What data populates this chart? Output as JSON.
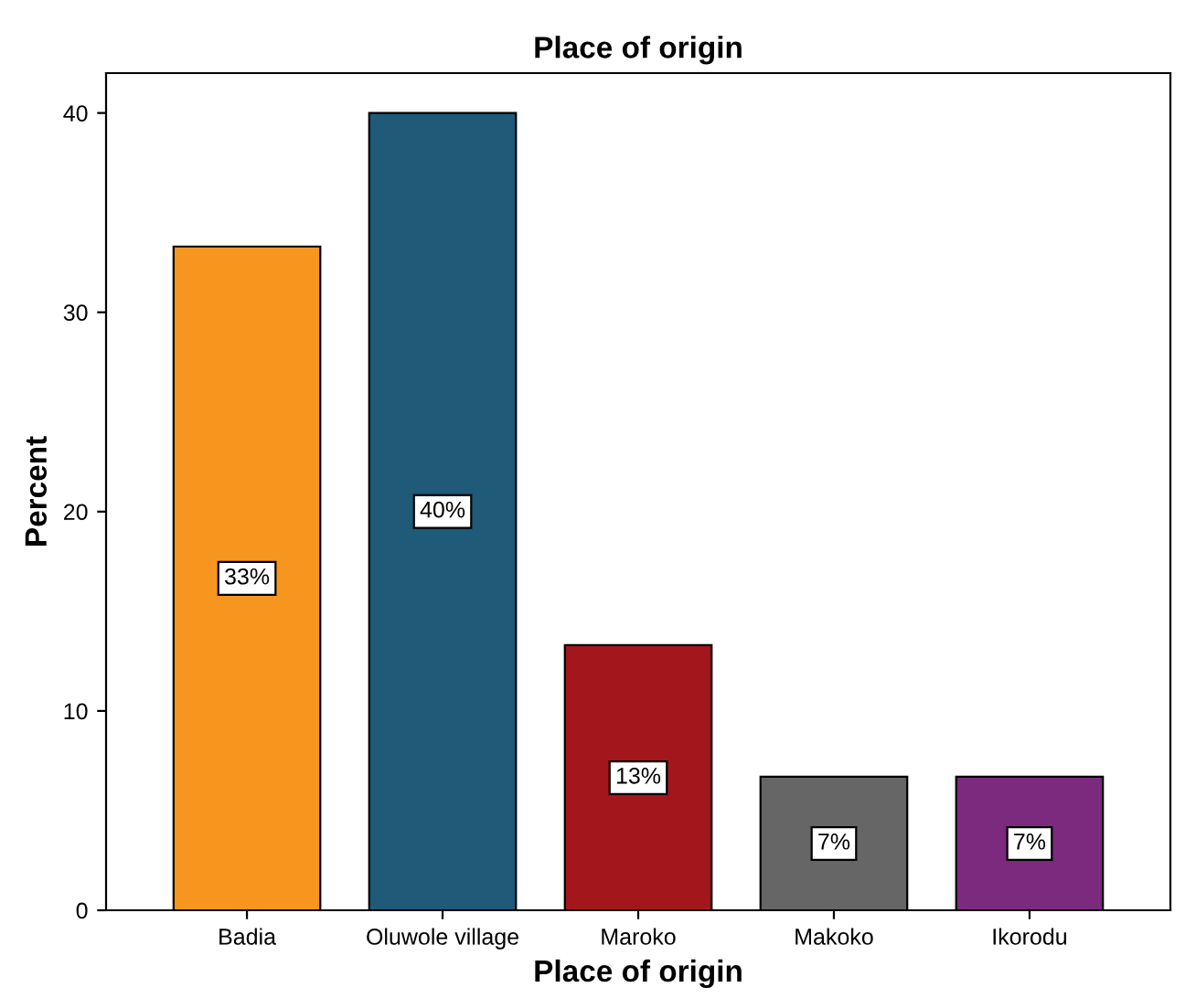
{
  "chart_data": {
    "type": "bar",
    "title": "Place of origin",
    "xlabel": "Place of origin",
    "ylabel": "Percent",
    "categories": [
      "Badia",
      "Oluwole village",
      "Maroko",
      "Makoko",
      "Ikorodu"
    ],
    "values": [
      33.3,
      40,
      13.3,
      6.7,
      6.7
    ],
    "value_labels": [
      "33%",
      "40%",
      "13%",
      "7%",
      "7%"
    ],
    "colors": [
      "#f7961e",
      "#1f5a78",
      "#a3171c",
      "#666666",
      "#7b2a7e"
    ],
    "ylim": [
      0,
      42
    ],
    "yticks": [
      0,
      10,
      20,
      30,
      40
    ],
    "grid": false,
    "legend": false
  }
}
